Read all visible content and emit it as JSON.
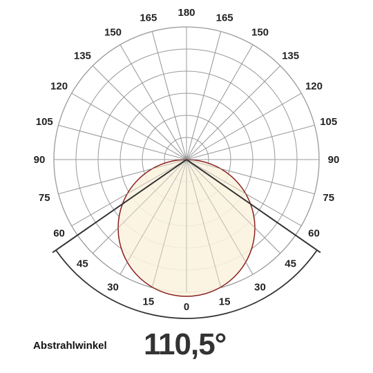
{
  "chart_data": {
    "type": "polar",
    "angle_labels": [
      "0",
      "15",
      "30",
      "45",
      "60",
      "75",
      "90",
      "105",
      "120",
      "135",
      "150",
      "165",
      "180"
    ],
    "angle_step_deg": 15,
    "ring_count": 6,
    "grid": true,
    "beam_angle_deg": 110.5,
    "distribution": "circular lobe from center downward",
    "colors": {
      "grid": "#999999",
      "lobe_fill": "#fbf3df",
      "lobe_stroke": "#8a1c1c",
      "beam_lines": "#333333"
    }
  },
  "caption": "Abstrahlwinkel",
  "beam_value": "110,5°"
}
